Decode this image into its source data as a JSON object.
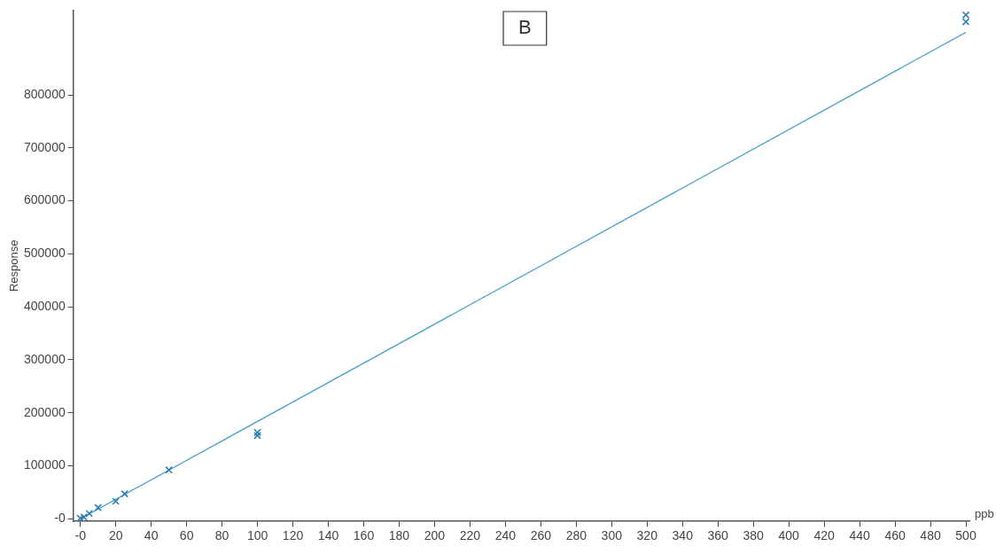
{
  "chart_data": {
    "type": "scatter",
    "xlabel": "ppb",
    "ylabel": "Response",
    "annotations": [
      "B"
    ],
    "xlim": [
      -4,
      502
    ],
    "ylim": [
      -5000,
      960000
    ],
    "xticks": [
      {
        "value": 0,
        "label": "-0"
      },
      20,
      40,
      60,
      80,
      100,
      120,
      140,
      160,
      180,
      200,
      220,
      240,
      260,
      280,
      300,
      320,
      340,
      360,
      380,
      400,
      420,
      440,
      460,
      480,
      500
    ],
    "yticks": [
      {
        "value": 0,
        "label": "-0"
      },
      100000,
      200000,
      300000,
      400000,
      500000,
      600000,
      700000,
      800000
    ],
    "grid": false,
    "legend": false,
    "marker": "cross",
    "series": [
      {
        "color": "#2b7eb3",
        "x": [
          0,
          1,
          2,
          5,
          10,
          20,
          25,
          50,
          100,
          100,
          500,
          500
        ],
        "values": [
          1000,
          null,
          3000,
          10000,
          21000,
          33000,
          47000,
          92000,
          163000,
          157000,
          951000,
          938000
        ]
      },
      {
        "type": "line",
        "color": "#3a9bc8",
        "x": [
          0,
          500
        ],
        "values": [
          0,
          918000
        ],
        "marker": "none"
      }
    ]
  }
}
